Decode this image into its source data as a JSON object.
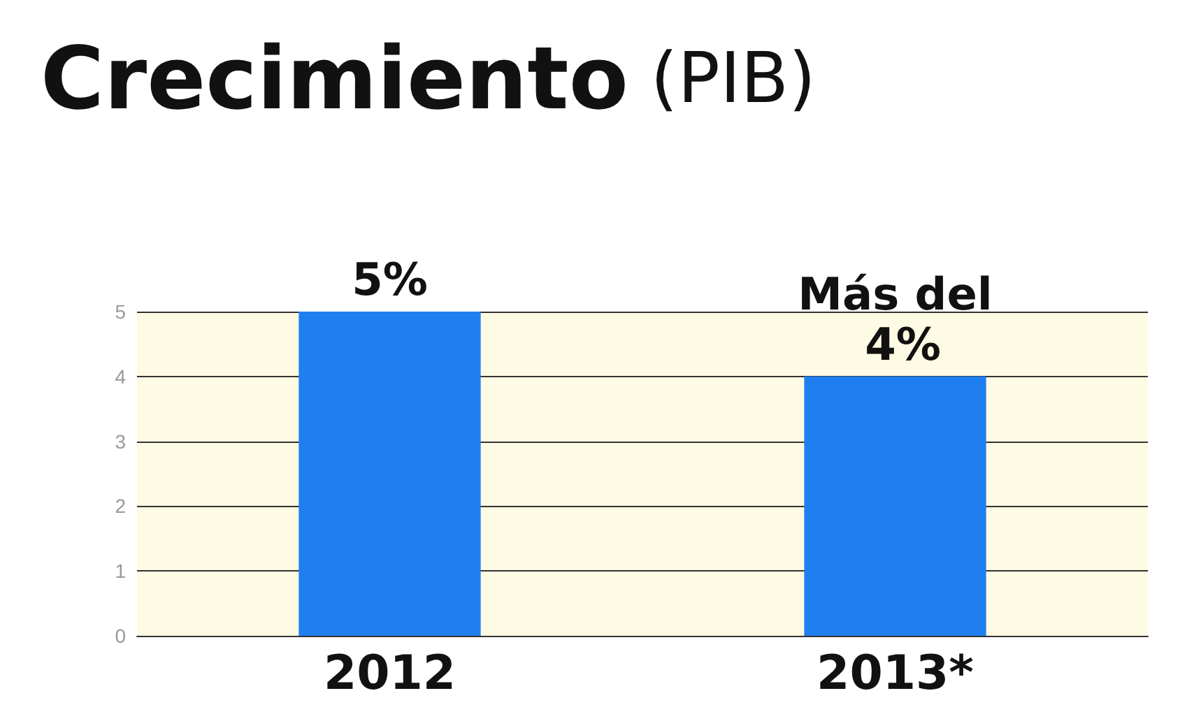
{
  "chart_data": {
    "type": "bar",
    "title": "Crecimiento (PIB)",
    "categories": [
      "2012",
      "2013*"
    ],
    "values": [
      5,
      4
    ],
    "value_labels": [
      "5%",
      "Más del 4%"
    ],
    "color": "#1f7ff0",
    "ylim": [
      0,
      5
    ],
    "yticks": [
      0,
      1,
      2,
      3,
      4,
      5
    ],
    "grid": "y"
  }
}
